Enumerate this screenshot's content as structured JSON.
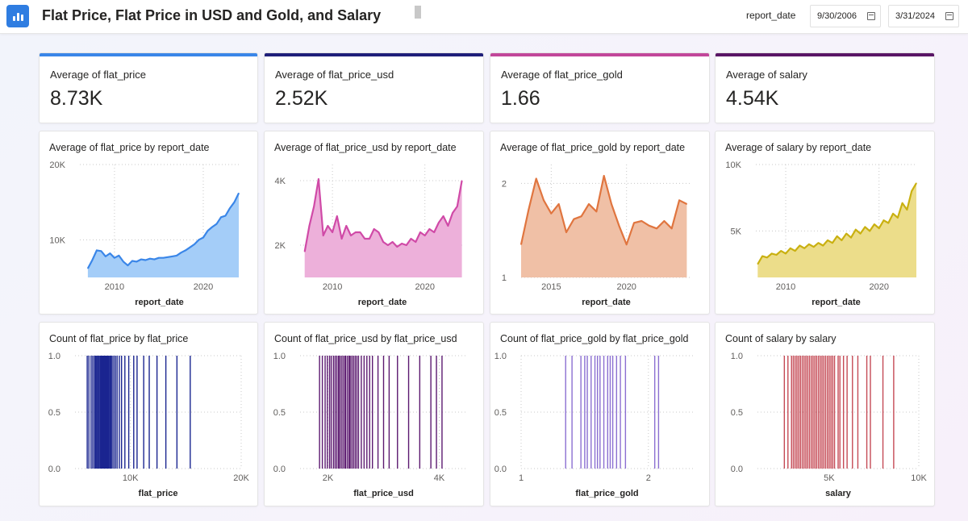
{
  "header": {
    "title": "Flat Price, Flat Price in USD and Gold, and Salary",
    "filter_label": "report_date",
    "start_date": "9/30/2006",
    "end_date": "3/31/2024"
  },
  "kpis": [
    {
      "label": "Average of flat_price",
      "value": "8.73K",
      "color": "#3a86e8"
    },
    {
      "label": "Average of flat_price_usd",
      "value": "2.52K",
      "color": "#1f1f7a"
    },
    {
      "label": "Average of flat_price_gold",
      "value": "1.66",
      "color": "#c2479a"
    },
    {
      "label": "Average of salary",
      "value": "4.54K",
      "color": "#5a1566"
    }
  ],
  "chart_data": [
    {
      "type": "area",
      "title": "Average of flat_price by report_date",
      "xlabel": "report_date",
      "x_ticks": [
        "2010",
        "2020"
      ],
      "y_ticks": [
        "10K",
        "20K"
      ],
      "line_color": "#3a86e8",
      "fill_color": "#a4cdf8",
      "x": [
        2007.0,
        2007.5,
        2008.0,
        2008.5,
        2009.0,
        2009.5,
        2010.0,
        2010.5,
        2011.0,
        2011.5,
        2012.0,
        2012.5,
        2013.0,
        2013.5,
        2014.0,
        2014.5,
        2015.0,
        2015.5,
        2016.0,
        2016.5,
        2017.0,
        2017.5,
        2018.0,
        2018.5,
        2019.0,
        2019.5,
        2020.0,
        2020.5,
        2021.0,
        2021.5,
        2022.0,
        2022.5,
        2023.0,
        2023.5,
        2024.0
      ],
      "values": [
        6200,
        7300,
        8600,
        8500,
        7800,
        8200,
        7600,
        7900,
        7100,
        6600,
        7200,
        7100,
        7400,
        7300,
        7500,
        7400,
        7600,
        7600,
        7700,
        7800,
        7900,
        8300,
        8600,
        9000,
        9400,
        10000,
        10300,
        11200,
        11700,
        12100,
        13000,
        13200,
        14200,
        15000,
        16200
      ]
    },
    {
      "type": "area",
      "title": "Average of flat_price_usd by report_date",
      "xlabel": "report_date",
      "x_ticks": [
        "2010",
        "2020"
      ],
      "y_ticks": [
        "2K",
        "4K"
      ],
      "line_color": "#d04aa7",
      "fill_color": "#edb0da",
      "x": [
        2007.0,
        2007.5,
        2008.0,
        2008.5,
        2009.0,
        2009.5,
        2010.0,
        2010.5,
        2011.0,
        2011.5,
        2012.0,
        2012.5,
        2013.0,
        2013.5,
        2014.0,
        2014.5,
        2015.0,
        2015.5,
        2016.0,
        2016.5,
        2017.0,
        2017.5,
        2018.0,
        2018.5,
        2019.0,
        2019.5,
        2020.0,
        2020.5,
        2021.0,
        2021.5,
        2022.0,
        2022.5,
        2023.0,
        2023.5,
        2024.0
      ],
      "values": [
        1800,
        2600,
        3200,
        4050,
        2300,
        2600,
        2400,
        2900,
        2200,
        2600,
        2300,
        2400,
        2400,
        2200,
        2200,
        2500,
        2400,
        2100,
        2000,
        2100,
        1950,
        2050,
        2000,
        2200,
        2100,
        2400,
        2300,
        2500,
        2400,
        2700,
        2900,
        2600,
        3000,
        3200,
        4000
      ]
    },
    {
      "type": "area",
      "title": "Average of flat_price_gold by report_date",
      "xlabel": "report_date",
      "x_ticks": [
        "2015",
        "2020"
      ],
      "y_ticks": [
        "1",
        "2"
      ],
      "line_color": "#e0753f",
      "fill_color": "#f0c0a6",
      "x": [
        2013.0,
        2013.5,
        2014.0,
        2014.5,
        2015.0,
        2015.5,
        2016.0,
        2016.5,
        2017.0,
        2017.5,
        2018.0,
        2018.5,
        2019.0,
        2019.5,
        2020.0,
        2020.5,
        2021.0,
        2021.5,
        2022.0,
        2022.5,
        2023.0,
        2023.5,
        2024.0
      ],
      "values": [
        1.35,
        1.72,
        2.05,
        1.82,
        1.68,
        1.78,
        1.48,
        1.62,
        1.65,
        1.78,
        1.7,
        2.08,
        1.78,
        1.55,
        1.35,
        1.58,
        1.6,
        1.55,
        1.52,
        1.6,
        1.52,
        1.82,
        1.78
      ]
    },
    {
      "type": "area",
      "title": "Average of salary by report_date",
      "xlabel": "report_date",
      "x_ticks": [
        "2010",
        "2020"
      ],
      "y_ticks": [
        "5K",
        "10K"
      ],
      "line_color": "#c9b010",
      "fill_color": "#ecdd8a",
      "x": [
        2007.0,
        2007.5,
        2008.0,
        2008.5,
        2009.0,
        2009.5,
        2010.0,
        2010.5,
        2011.0,
        2011.5,
        2012.0,
        2012.5,
        2013.0,
        2013.5,
        2014.0,
        2014.5,
        2015.0,
        2015.5,
        2016.0,
        2016.5,
        2017.0,
        2017.5,
        2018.0,
        2018.5,
        2019.0,
        2019.5,
        2020.0,
        2020.5,
        2021.0,
        2021.5,
        2022.0,
        2022.5,
        2023.0,
        2023.5,
        2024.0
      ],
      "values": [
        2500,
        3100,
        3000,
        3300,
        3200,
        3500,
        3300,
        3700,
        3500,
        3900,
        3700,
        4000,
        3800,
        4100,
        3900,
        4300,
        4100,
        4600,
        4300,
        4800,
        4500,
        5100,
        4800,
        5300,
        5000,
        5500,
        5200,
        5800,
        5600,
        6300,
        6000,
        7100,
        6600,
        8000,
        8600
      ]
    },
    {
      "type": "bar",
      "title": "Count of flat_price by flat_price",
      "xlabel": "flat_price",
      "x_ticks": [
        "10K",
        "20K"
      ],
      "y_ticks": [
        "0.0",
        "0.5",
        "1.0"
      ],
      "xlim": [
        5000,
        20000
      ],
      "color": "#1a2590",
      "x": [
        6100,
        6250,
        6450,
        6600,
        6750,
        6850,
        6950,
        7050,
        7150,
        7250,
        7300,
        7380,
        7450,
        7500,
        7580,
        7650,
        7700,
        7780,
        7850,
        7900,
        7980,
        8050,
        8150,
        8250,
        8350,
        8500,
        8650,
        8800,
        9000,
        9200,
        9500,
        9850,
        10300,
        10600,
        11200,
        11700,
        12400,
        13200,
        14200,
        15400
      ],
      "values": [
        1,
        1,
        1,
        1,
        1,
        1,
        1,
        1,
        1,
        1,
        1,
        1,
        1,
        1,
        1,
        1,
        1,
        1,
        1,
        1,
        1,
        1,
        1,
        1,
        1,
        1,
        1,
        1,
        1,
        1,
        1,
        1,
        1,
        1,
        1,
        1,
        1,
        1,
        1,
        1
      ]
    },
    {
      "type": "bar",
      "title": "Count of flat_price_usd by flat_price_usd",
      "xlabel": "flat_price_usd",
      "x_ticks": [
        "2K",
        "4K"
      ],
      "y_ticks": [
        "0.0",
        "0.5",
        "1.0"
      ],
      "xlim": [
        1500,
        4500
      ],
      "color": "#5c1a70",
      "x": [
        1850,
        1900,
        1950,
        1990,
        2030,
        2060,
        2100,
        2130,
        2160,
        2190,
        2210,
        2240,
        2270,
        2300,
        2320,
        2350,
        2380,
        2400,
        2430,
        2460,
        2490,
        2520,
        2550,
        2600,
        2650,
        2700,
        2750,
        2800,
        2900,
        3000,
        3100,
        3250,
        3450,
        3650,
        3850,
        3950,
        4050
      ],
      "values": [
        1,
        1,
        1,
        1,
        1,
        1,
        1,
        1,
        1,
        1,
        1,
        1,
        1,
        1,
        1,
        1,
        1,
        1,
        1,
        1,
        1,
        1,
        1,
        1,
        1,
        1,
        1,
        1,
        1,
        1,
        1,
        1,
        1,
        1,
        1,
        1,
        1
      ]
    },
    {
      "type": "bar",
      "title": "Count of flat_price_gold by flat_price_gold",
      "xlabel": "flat_price_gold",
      "x_ticks": [
        "1",
        "2"
      ],
      "y_ticks": [
        "0.0",
        "0.5",
        "1.0"
      ],
      "xlim": [
        1.0,
        2.35
      ],
      "color": "#8b6fd1",
      "x": [
        1.35,
        1.4,
        1.47,
        1.5,
        1.52,
        1.55,
        1.58,
        1.6,
        1.62,
        1.65,
        1.68,
        1.7,
        1.72,
        1.75,
        1.78,
        1.82,
        2.05,
        2.08
      ],
      "values": [
        1,
        1,
        1,
        1,
        1,
        1,
        1,
        1,
        1,
        1,
        1,
        1,
        1,
        1,
        1,
        1,
        1,
        1
      ]
    },
    {
      "type": "bar",
      "title": "Count of salary by salary",
      "xlabel": "salary",
      "x_ticks": [
        "5K",
        "10K"
      ],
      "y_ticks": [
        "0.0",
        "0.5",
        "1.0"
      ],
      "xlim": [
        1000,
        10000
      ],
      "color": "#c54a55",
      "x": [
        2500,
        2700,
        2900,
        3000,
        3100,
        3200,
        3300,
        3400,
        3500,
        3600,
        3700,
        3800,
        3900,
        4000,
        4100,
        4200,
        4300,
        4400,
        4500,
        4600,
        4700,
        4800,
        4900,
        5000,
        5100,
        5200,
        5300,
        5500,
        5600,
        5800,
        6000,
        6300,
        6600,
        7100,
        7300,
        8000,
        8600
      ],
      "values": [
        1,
        1,
        1,
        1,
        1,
        1,
        1,
        1,
        1,
        1,
        1,
        1,
        1,
        1,
        1,
        1,
        1,
        1,
        1,
        1,
        1,
        1,
        1,
        1,
        1,
        1,
        1,
        1,
        1,
        1,
        1,
        1,
        1,
        1,
        1,
        1,
        1
      ]
    }
  ]
}
